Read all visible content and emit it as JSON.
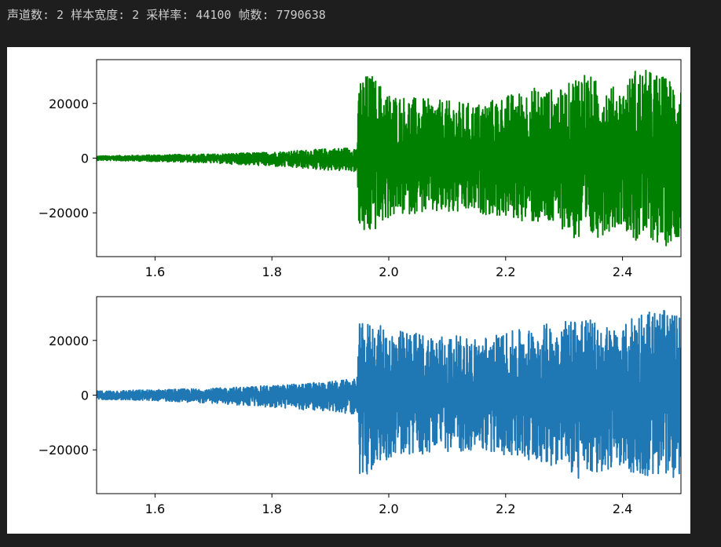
{
  "output": {
    "text": "声道数: 2 样本宽度: 2 采样率: 44100 帧数: 7790638"
  },
  "chart_data": [
    {
      "type": "line",
      "title": "",
      "xlabel": "",
      "ylabel": "",
      "xlim": [
        1.5,
        2.5
      ],
      "ylim": [
        -36000,
        36000
      ],
      "xticks": [
        1.6,
        1.8,
        2.0,
        2.2,
        2.4
      ],
      "xtick_labels": [
        "1.6",
        "1.8",
        "2.0",
        "2.2",
        "2.4"
      ],
      "yticks": [
        20000,
        0,
        -20000
      ],
      "ytick_labels": [
        "20000",
        "0",
        "−20000"
      ],
      "color": "#008000",
      "envelope": {
        "x": [
          1.5,
          1.6,
          1.7,
          1.8,
          1.9,
          1.945,
          1.95,
          1.97,
          2.0,
          2.05,
          2.1,
          2.15,
          2.2,
          2.25,
          2.3,
          2.33,
          2.35,
          2.4,
          2.42,
          2.45,
          2.47,
          2.5
        ],
        "upper": [
          800,
          1200,
          1500,
          2200,
          3500,
          4000,
          30000,
          31000,
          24000,
          22000,
          21000,
          20000,
          23000,
          26000,
          25000,
          34000,
          29000,
          25000,
          33000,
          32000,
          30000,
          28000
        ],
        "lower": [
          -800,
          -1200,
          -1800,
          -3000,
          -4500,
          -5000,
          -30000,
          -28000,
          -22000,
          -20000,
          -21000,
          -20000,
          -22000,
          -24000,
          -26000,
          -33000,
          -30000,
          -24000,
          -31000,
          -30000,
          -33000,
          -28000
        ]
      }
    },
    {
      "type": "line",
      "title": "",
      "xlabel": "",
      "ylabel": "",
      "xlim": [
        1.5,
        2.5
      ],
      "ylim": [
        -36000,
        36000
      ],
      "xticks": [
        1.6,
        1.8,
        2.0,
        2.2,
        2.4
      ],
      "xtick_labels": [
        "1.6",
        "1.8",
        "2.0",
        "2.2",
        "2.4"
      ],
      "yticks": [
        20000,
        0,
        -20000
      ],
      "ytick_labels": [
        "20000",
        "0",
        "−20000"
      ],
      "color": "#1f77b4",
      "envelope": {
        "x": [
          1.5,
          1.6,
          1.7,
          1.8,
          1.9,
          1.945,
          1.95,
          1.97,
          2.0,
          2.05,
          2.1,
          2.15,
          2.2,
          2.25,
          2.3,
          2.33,
          2.35,
          2.4,
          2.42,
          2.45,
          2.47,
          2.5
        ],
        "upper": [
          1500,
          2000,
          2500,
          3500,
          5000,
          6000,
          26000,
          27000,
          24000,
          23000,
          22000,
          21000,
          23000,
          25000,
          28000,
          30000,
          27000,
          24000,
          31000,
          32000,
          31000,
          29000
        ],
        "lower": [
          -1500,
          -2000,
          -3000,
          -4500,
          -6000,
          -7000,
          -32000,
          -28000,
          -23000,
          -22000,
          -21000,
          -20000,
          -22000,
          -24000,
          -27000,
          -32000,
          -30000,
          -25000,
          -31000,
          -30000,
          -32000,
          -29000
        ]
      }
    }
  ]
}
